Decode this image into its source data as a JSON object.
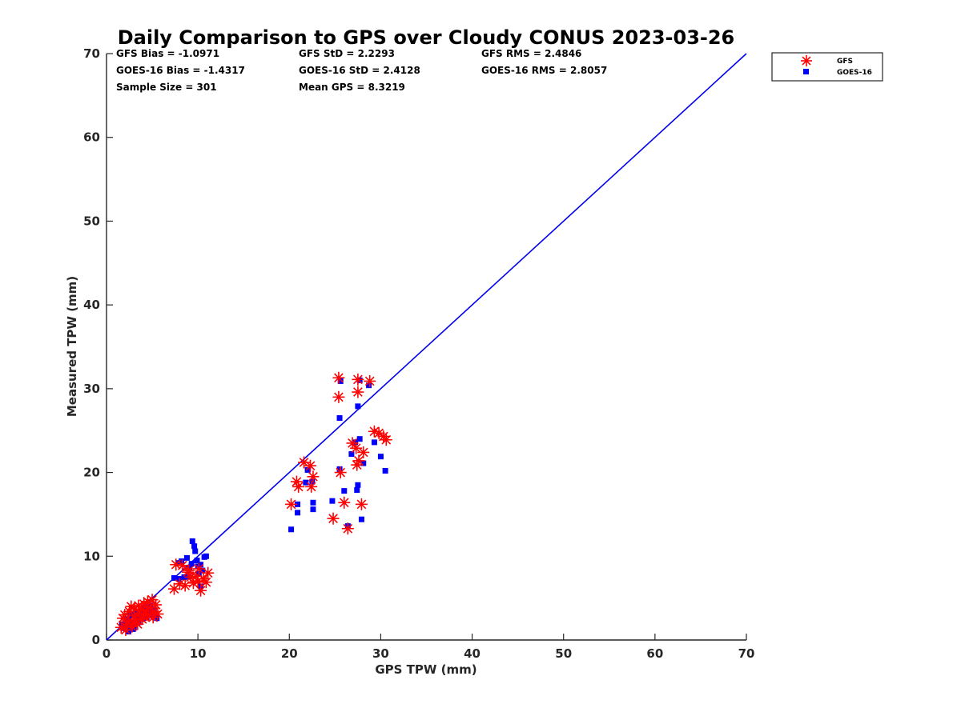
{
  "chart_data": {
    "type": "scatter",
    "title": "Daily Comparison to GPS over Cloudy CONUS 2023-03-26",
    "xlabel": "GPS TPW (mm)",
    "ylabel": "Measured TPW (mm)",
    "xlim": [
      0,
      70
    ],
    "ylim": [
      0,
      70
    ],
    "xticks": [
      0,
      10,
      20,
      30,
      40,
      50,
      60,
      70
    ],
    "yticks": [
      0,
      10,
      20,
      30,
      40,
      50,
      60,
      70
    ],
    "grid": false,
    "legend_position": "outside-top-right",
    "stats": [
      [
        "GFS Bias = -1.0971",
        "GFS StD = 2.2293",
        "GFS RMS = 2.4846"
      ],
      [
        "GOES-16 Bias = -1.4317",
        "GOES-16 StD = 2.4128",
        "GOES-16 RMS = 2.8057"
      ],
      [
        "Sample Size = 301",
        "Mean GPS = 8.3219"
      ]
    ],
    "reference_line": {
      "from": [
        0,
        0
      ],
      "to": [
        70,
        70
      ],
      "color": "#0000ee"
    },
    "series": [
      {
        "name": "GFS",
        "marker": "asterisk",
        "color": "#ff0000",
        "points": [
          [
            1.6,
            1.5
          ],
          [
            1.8,
            2.6
          ],
          [
            2.0,
            3.0
          ],
          [
            2.2,
            1.9
          ],
          [
            2.4,
            2.2
          ],
          [
            2.5,
            3.4
          ],
          [
            2.7,
            4.0
          ],
          [
            2.8,
            1.6
          ],
          [
            3.0,
            2.9
          ],
          [
            3.1,
            3.7
          ],
          [
            3.3,
            2.4
          ],
          [
            3.5,
            4.1
          ],
          [
            3.6,
            3.2
          ],
          [
            3.8,
            3.6
          ],
          [
            4.0,
            2.8
          ],
          [
            4.1,
            4.3
          ],
          [
            4.3,
            3.5
          ],
          [
            4.5,
            4.6
          ],
          [
            4.6,
            2.9
          ],
          [
            4.8,
            3.9
          ],
          [
            5.0,
            4.8
          ],
          [
            5.2,
            3.4
          ],
          [
            5.4,
            4.2
          ],
          [
            5.6,
            3.1
          ],
          [
            2.1,
            1.2
          ],
          [
            2.9,
            2.0
          ],
          [
            3.9,
            2.5
          ],
          [
            4.4,
            3.1
          ],
          [
            5.1,
            2.7
          ],
          [
            3.4,
            1.9
          ],
          [
            7.4,
            6.1
          ],
          [
            7.6,
            9.0
          ],
          [
            8.0,
            6.7
          ],
          [
            8.3,
            8.9
          ],
          [
            8.6,
            6.5
          ],
          [
            8.9,
            8.1
          ],
          [
            9.2,
            7.5
          ],
          [
            9.5,
            6.8
          ],
          [
            9.8,
            7.6
          ],
          [
            10.1,
            8.5
          ],
          [
            10.3,
            5.9
          ],
          [
            10.6,
            7.3
          ],
          [
            10.9,
            6.9
          ],
          [
            11.1,
            8.0
          ],
          [
            9.0,
            8.3
          ],
          [
            10.0,
            7.0
          ],
          [
            20.2,
            16.2
          ],
          [
            20.8,
            18.9
          ],
          [
            21.0,
            18.3
          ],
          [
            21.6,
            21.2
          ],
          [
            22.3,
            20.8
          ],
          [
            22.6,
            19.5
          ],
          [
            22.4,
            18.3
          ],
          [
            24.8,
            14.5
          ],
          [
            25.4,
            31.3
          ],
          [
            25.4,
            29.0
          ],
          [
            25.6,
            20.0
          ],
          [
            26.0,
            16.4
          ],
          [
            26.4,
            13.3
          ],
          [
            26.9,
            23.5
          ],
          [
            27.3,
            22.9
          ],
          [
            27.5,
            31.1
          ],
          [
            27.5,
            29.6
          ],
          [
            27.4,
            20.9
          ],
          [
            27.9,
            16.2
          ],
          [
            28.1,
            22.4
          ],
          [
            28.8,
            30.9
          ],
          [
            29.3,
            24.9
          ],
          [
            29.8,
            24.7
          ],
          [
            30.3,
            24.3
          ],
          [
            30.6,
            23.9
          ],
          [
            27.6,
            21.4
          ]
        ]
      },
      {
        "name": "GOES-16",
        "marker": "square",
        "color": "#0000ff",
        "points": [
          [
            1.7,
            1.9
          ],
          [
            2.0,
            1.4
          ],
          [
            2.2,
            2.5
          ],
          [
            2.4,
            1.0
          ],
          [
            2.6,
            3.0
          ],
          [
            2.8,
            2.0
          ],
          [
            3.0,
            1.5
          ],
          [
            3.2,
            3.3
          ],
          [
            3.4,
            2.4
          ],
          [
            3.6,
            2.9
          ],
          [
            3.8,
            3.5
          ],
          [
            4.0,
            2.6
          ],
          [
            4.2,
            3.9
          ],
          [
            4.4,
            2.7
          ],
          [
            4.6,
            3.4
          ],
          [
            4.8,
            4.1
          ],
          [
            5.0,
            3.0
          ],
          [
            5.2,
            3.6
          ],
          [
            5.5,
            2.6
          ],
          [
            2.3,
            1.6
          ],
          [
            3.5,
            2.1
          ],
          [
            4.5,
            3.0
          ],
          [
            5.1,
            2.8
          ],
          [
            2.9,
            1.3
          ],
          [
            7.4,
            7.4
          ],
          [
            7.9,
            7.3
          ],
          [
            8.2,
            9.4
          ],
          [
            8.5,
            7.5
          ],
          [
            8.8,
            9.8
          ],
          [
            9.1,
            8.6
          ],
          [
            9.4,
            11.8
          ],
          [
            9.6,
            11.2
          ],
          [
            9.7,
            10.6
          ],
          [
            9.9,
            9.5
          ],
          [
            10.1,
            7.9
          ],
          [
            10.3,
            9.0
          ],
          [
            10.5,
            8.3
          ],
          [
            10.7,
            9.9
          ],
          [
            10.9,
            10.0
          ],
          [
            9.3,
            9.1
          ],
          [
            10.0,
            8.8
          ],
          [
            10.3,
            6.4
          ],
          [
            7.9,
            9.2
          ],
          [
            9.0,
            7.6
          ],
          [
            20.2,
            13.2
          ],
          [
            20.9,
            16.2
          ],
          [
            20.9,
            15.2
          ],
          [
            21.8,
            18.8
          ],
          [
            22.0,
            20.3
          ],
          [
            22.6,
            16.4
          ],
          [
            22.6,
            15.6
          ],
          [
            22.5,
            18.9
          ],
          [
            24.7,
            16.6
          ],
          [
            25.6,
            30.9
          ],
          [
            25.5,
            26.5
          ],
          [
            25.5,
            20.4
          ],
          [
            26.0,
            17.8
          ],
          [
            26.4,
            13.6
          ],
          [
            26.8,
            22.2
          ],
          [
            27.2,
            23.6
          ],
          [
            27.7,
            31.0
          ],
          [
            27.5,
            27.9
          ],
          [
            27.5,
            18.5
          ],
          [
            27.4,
            17.9
          ],
          [
            27.7,
            24.0
          ],
          [
            27.9,
            14.4
          ],
          [
            28.1,
            21.1
          ],
          [
            28.7,
            30.4
          ],
          [
            29.3,
            23.6
          ],
          [
            30.0,
            21.9
          ],
          [
            30.5,
            20.2
          ]
        ]
      }
    ]
  },
  "legend": {
    "items": [
      {
        "label": "GFS",
        "color": "#ff0000",
        "marker": "asterisk"
      },
      {
        "label": "GOES-16",
        "color": "#0000ff",
        "marker": "square"
      }
    ]
  }
}
